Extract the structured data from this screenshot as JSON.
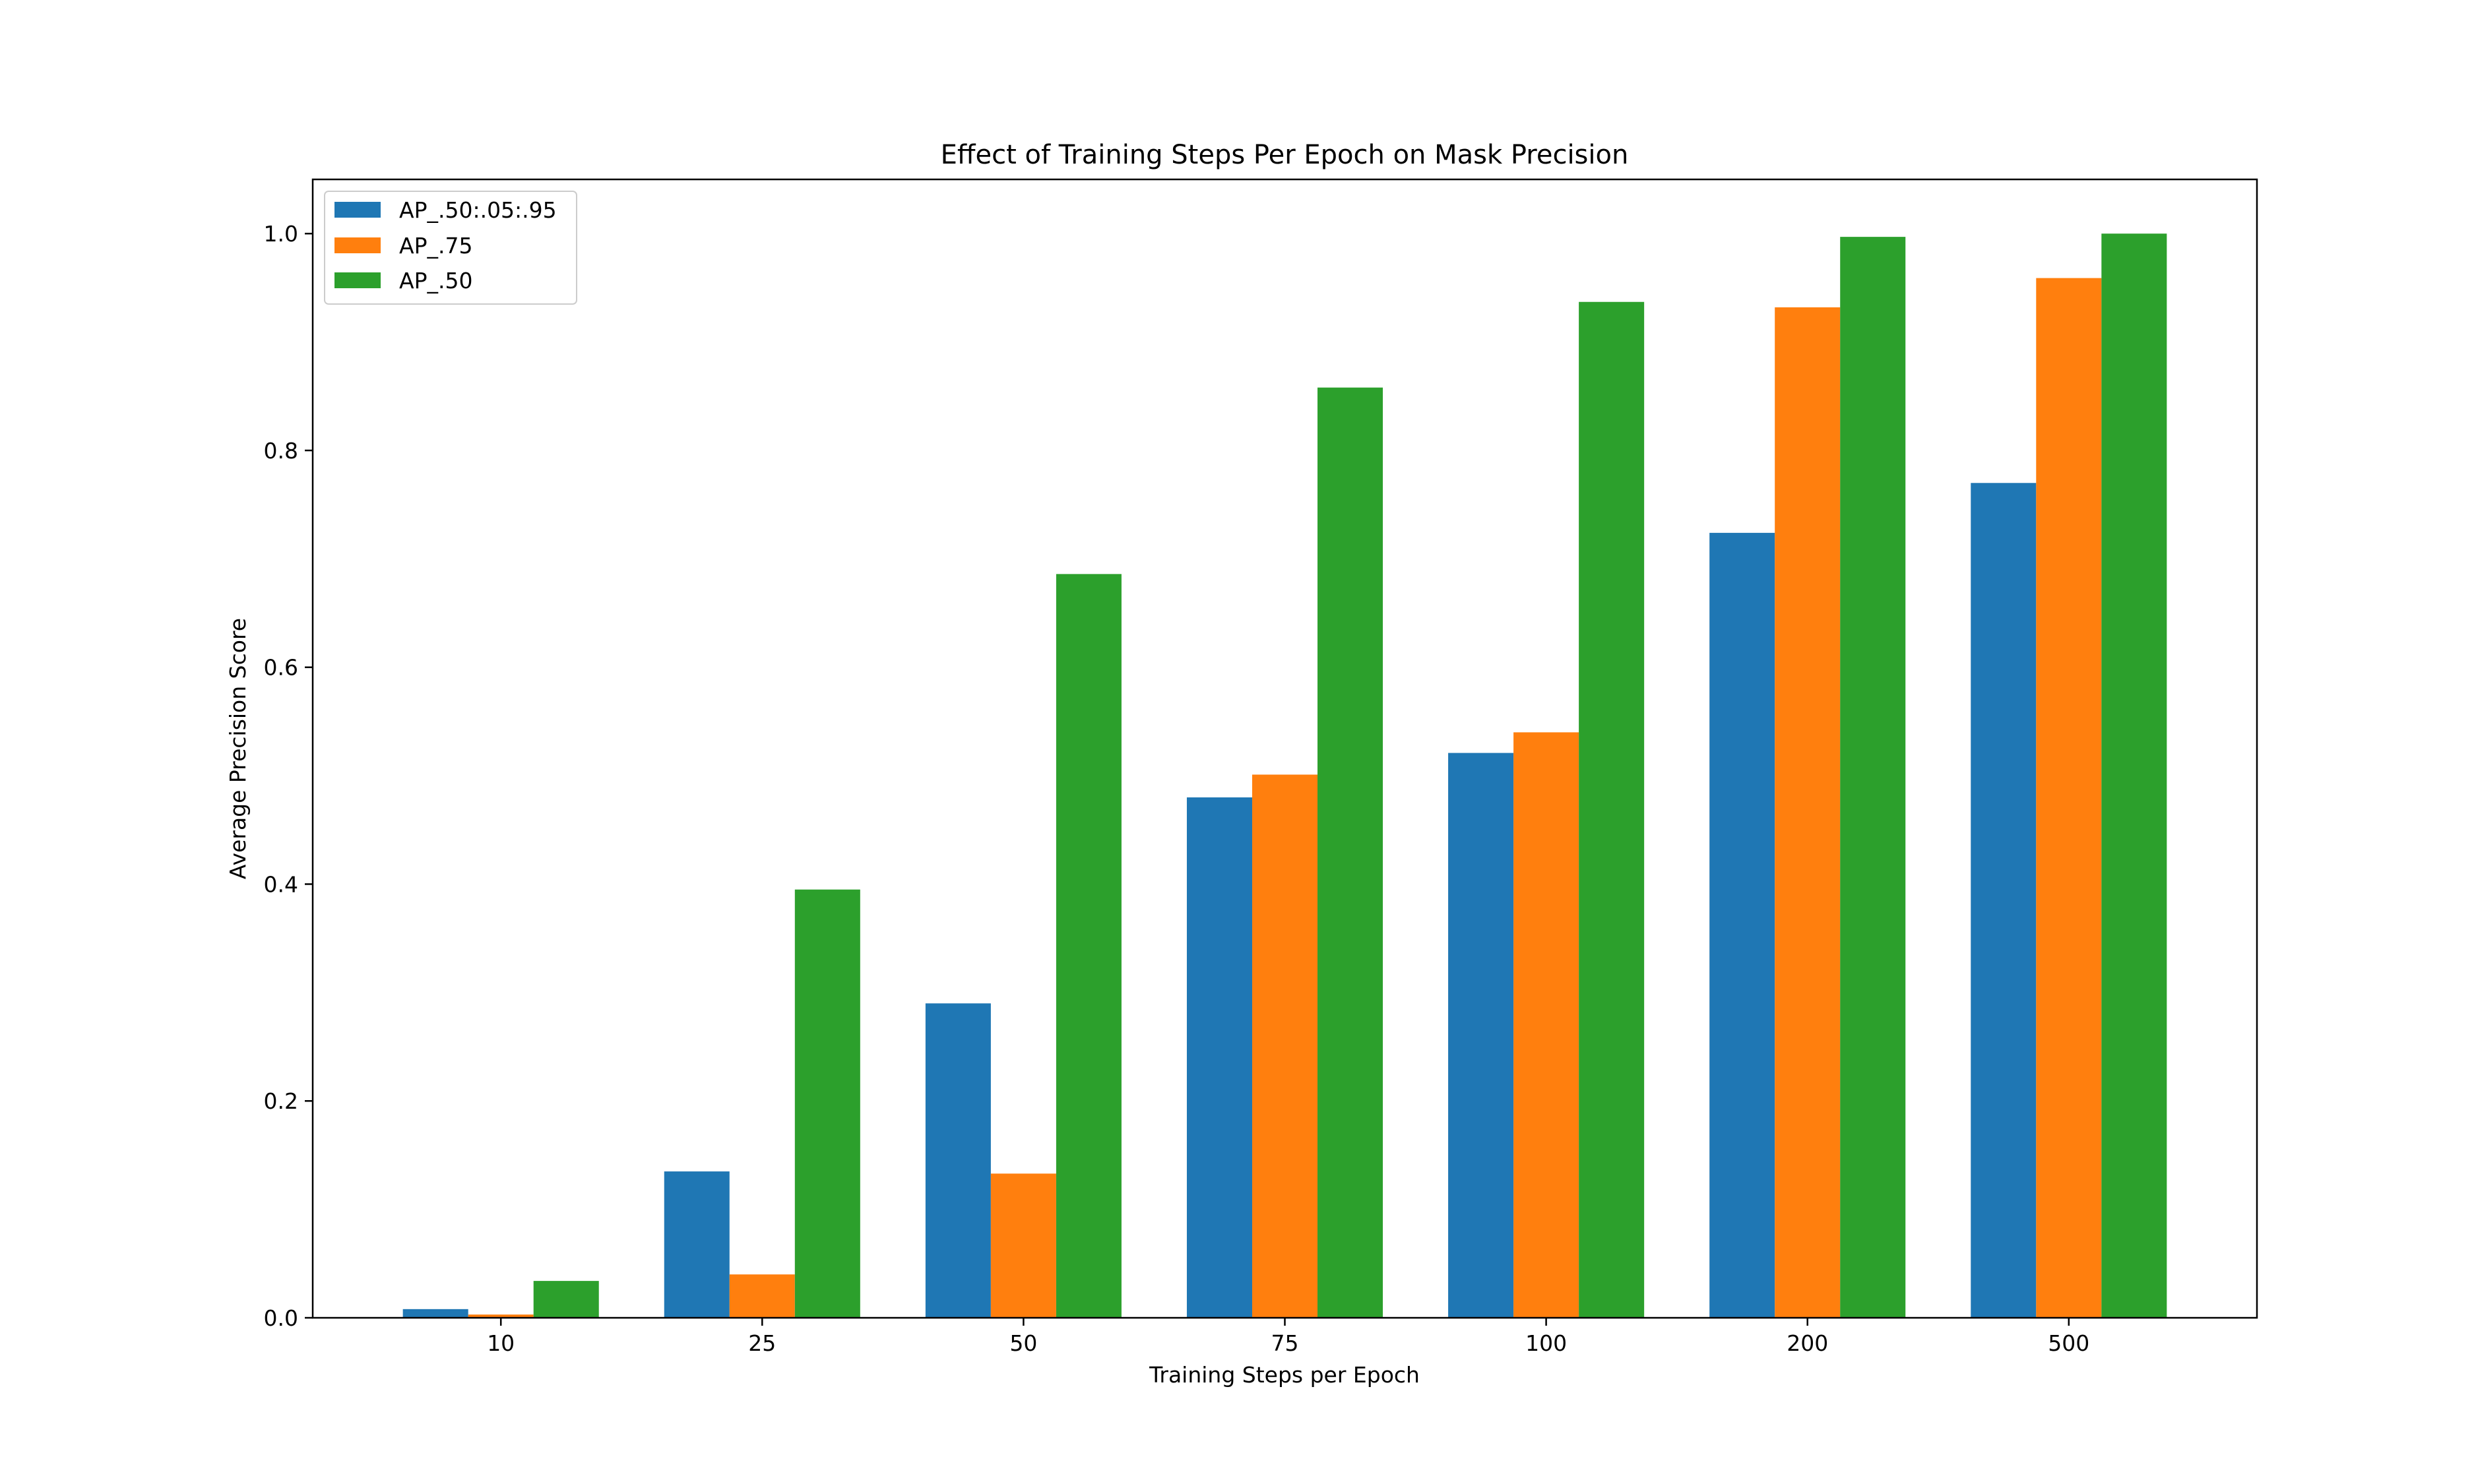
{
  "chart_data": {
    "type": "bar",
    "title": "Effect of Training Steps Per Epoch on Mask Precision",
    "xlabel": "Training Steps per Epoch",
    "ylabel": "Average Precision Score",
    "categories": [
      "10",
      "25",
      "50",
      "75",
      "100",
      "200",
      "500"
    ],
    "ylim": [
      0,
      1.05
    ],
    "yticks": [
      "0.0",
      "0.2",
      "0.4",
      "0.6",
      "0.8",
      "1.0"
    ],
    "grid": false,
    "legend_position": "top-left",
    "series": [
      {
        "name": "AP_.50:.05:.95",
        "color": "#1f77b4",
        "values": [
          0.008,
          0.135,
          0.29,
          0.48,
          0.521,
          0.724,
          0.77
        ]
      },
      {
        "name": "AP_.75",
        "color": "#ff7f0e",
        "values": [
          0.003,
          0.04,
          0.133,
          0.501,
          0.54,
          0.932,
          0.959
        ]
      },
      {
        "name": "AP_.50",
        "color": "#2ca02c",
        "values": [
          0.034,
          0.395,
          0.686,
          0.858,
          0.937,
          0.997,
          1.0
        ]
      }
    ]
  }
}
